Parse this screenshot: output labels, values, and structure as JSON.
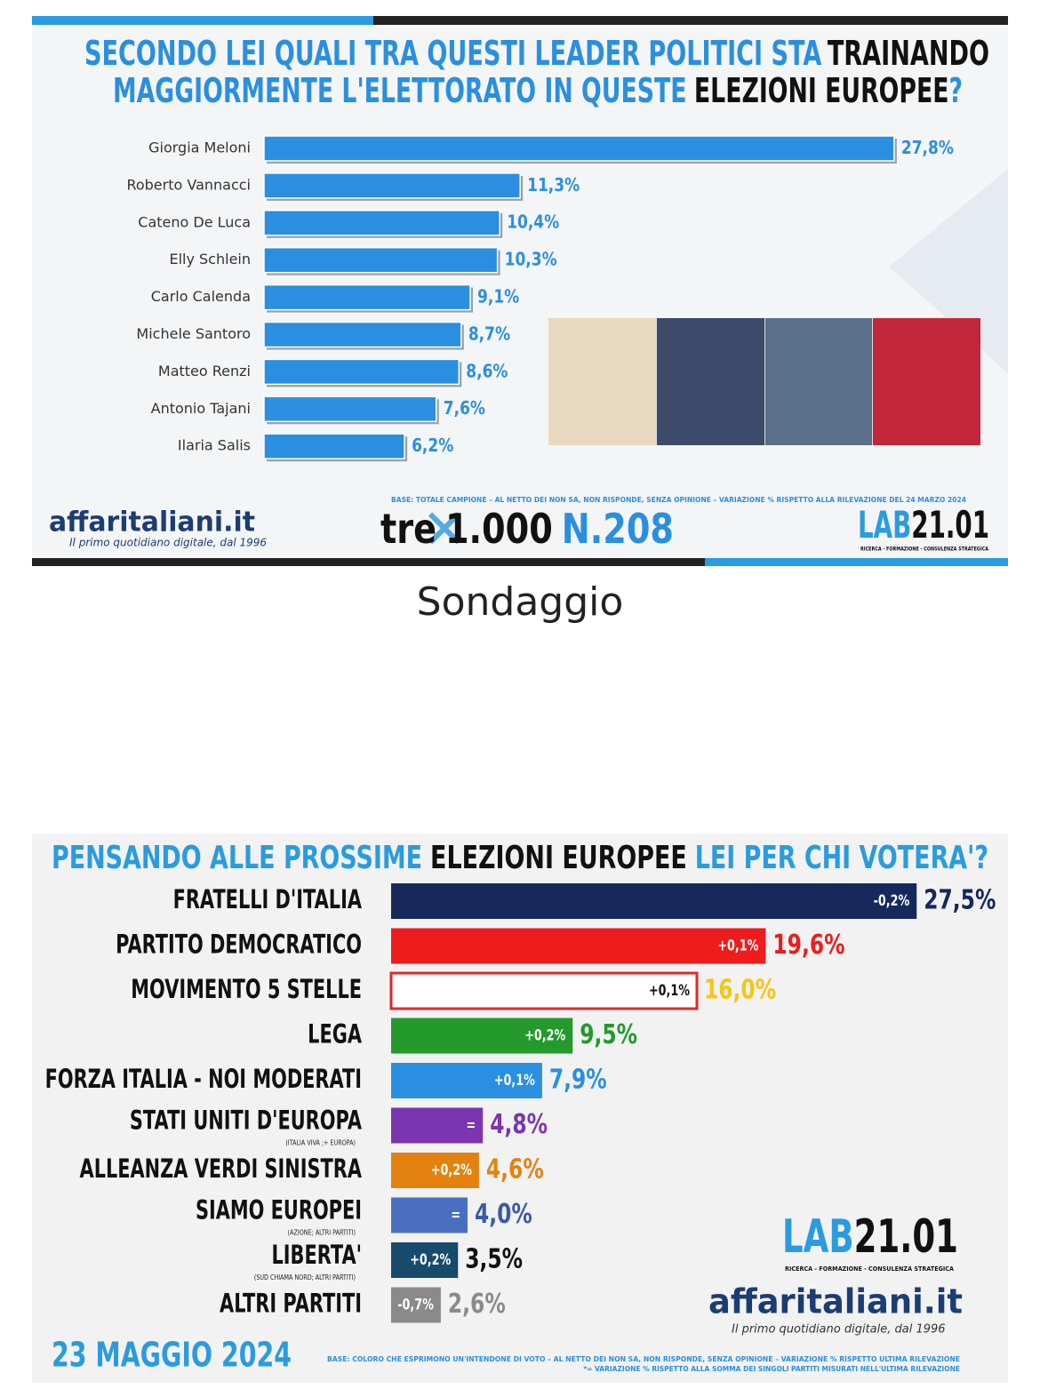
{
  "caption": "Sondaggio",
  "chart_data": [
    {
      "type": "bar",
      "title_lines": [
        [
          {
            "text": "SECONDO LEI QUALI TRA QUESTI LEADER POLITICI STA",
            "color": "#2a8fe0"
          },
          {
            "text": "TRAINANDO",
            "color": "#111111"
          }
        ],
        [
          {
            "text": "MAGGIORMENTE L'ELETTORATO IN QUESTE",
            "color": "#2a8fe0"
          },
          {
            "text": "ELEZIONI EUROPEE",
            "color": "#111111"
          },
          {
            "text": "?",
            "color": "#2a8fe0"
          }
        ]
      ],
      "categories": [
        "Giorgia Meloni",
        "Roberto Vannacci",
        "Cateno De Luca",
        "Elly Schlein",
        "Carlo Calenda",
        "Michele Santoro",
        "Matteo Renzi",
        "Antonio Tajani",
        "Ilaria Salis"
      ],
      "values": [
        27.8,
        11.3,
        10.4,
        10.3,
        9.1,
        8.7,
        8.6,
        7.6,
        6.2
      ],
      "value_labels": [
        "27,8%",
        "11,3%",
        "10,4%",
        "10,3%",
        "9,1%",
        "8,7%",
        "8,6%",
        "7,6%",
        "6,2%"
      ],
      "color": "#2a8fe0",
      "source_note": "BASE: TOTALE CAMPIONE – AL NETTO DEI NON SA, NON RISPONDE, SENZA OPINIONE – VARIAZIONE % RISPETTO ALLA RILEVAZIONE DEL 24 MARZO 2024",
      "brand": "affaritaliani.it",
      "brand_tagline": "Il primo quotidiano digitale, dal 1996",
      "series_name": [
        "tre",
        "1.000",
        "N.208"
      ],
      "lab_logo": [
        "LAB",
        "21.01"
      ],
      "lab_tagline": "RICERCA - FORMAZIONE - CONSULENZA STRATEGICA"
    },
    {
      "type": "bar",
      "title_lines": [
        [
          {
            "text": "PENSANDO ALLE PROSSIME",
            "color": "#2a9be0"
          },
          {
            "text": "ELEZIONI EUROPEE",
            "color": "#111111"
          },
          {
            "text": "LEI PER CHI VOTERA'?",
            "color": "#2a9be0"
          }
        ]
      ],
      "categories": [
        "FRATELLI D'ITALIA",
        "PARTITO DEMOCRATICO",
        "MOVIMENTO 5 STELLE",
        "LEGA",
        "FORZA ITALIA - NOI MODERATI",
        "STATI UNITI D'EUROPA",
        "ALLEANZA VERDI SINISTRA",
        "SIAMO EUROPEI",
        "LIBERTA'",
        "ALTRI PARTITI"
      ],
      "category_notes": [
        null,
        null,
        null,
        null,
        null,
        "(ITALIA VIVA ;+ EUROPA)",
        null,
        "(AZIONE; ALTRI PARTITI)",
        "(SUD CHIAMA NORD; ALTRI PARTITI)",
        null
      ],
      "values": [
        27.5,
        19.6,
        16.0,
        9.5,
        7.9,
        4.8,
        4.6,
        4.0,
        3.5,
        2.6
      ],
      "value_labels": [
        "27,5%",
        "19,6%",
        "16,0%",
        "9,5%",
        "7,9%",
        "4,8%",
        "4,6%",
        "4,0%",
        "3,5%",
        "2,6%"
      ],
      "changes": {
        "values": [
          -0.2,
          0.1,
          0.1,
          0.2,
          0.1,
          0,
          0.2,
          0,
          0.2,
          -0.7
        ],
        "value_labels": [
          "-0,2%",
          "+0,1%",
          "+0,1%",
          "+0,2%",
          "+0,1%",
          "=",
          "+0,2%",
          "=",
          "+0,2%",
          "-0,7%"
        ]
      },
      "colors": [
        "#15295c",
        "#ee1c1c",
        "#ffffff",
        "#249a2c",
        "#2a8fe0",
        "#7b35b0",
        "#e3820e",
        "#4a6fc0",
        "#174a6b",
        "#8a8a8a"
      ],
      "outline": [
        null,
        null,
        "#e02828",
        null,
        null,
        null,
        null,
        null,
        null,
        null
      ],
      "label_colors": [
        "#15295c",
        "#ee1c1c",
        "#f5c518",
        "#249a2c",
        "#2a8fe0",
        "#7b35b0",
        "#e3820e",
        "#3a5aa8",
        "#111111",
        "#8a8a8a"
      ],
      "date": "23 MAGGIO 2024",
      "source_note": [
        "BASE: COLORO CHE ESPRIMONO UN'INTENDONE DI VOTO – AL NETTO DEI NON SA, NON RISPONDE, SENZA OPINIONE – VARIAZIONE % RISPETTO ULTIMA RILEVAZIONE",
        "*= VARIAZIONE % RISPETTO ALLA SOMMA DEI SINGOLI PARTITI MISURATI NELL'ULTIMA RILEVAZIONE"
      ],
      "lab_logo": [
        "LAB",
        "21.01"
      ],
      "lab_tagline": "RICERCA - FORMAZIONE - CONSULENZA STRATEGICA",
      "brand": "affaritaliani.it",
      "brand_tagline": "Il primo quotidiano digitale, dal 1996"
    }
  ]
}
